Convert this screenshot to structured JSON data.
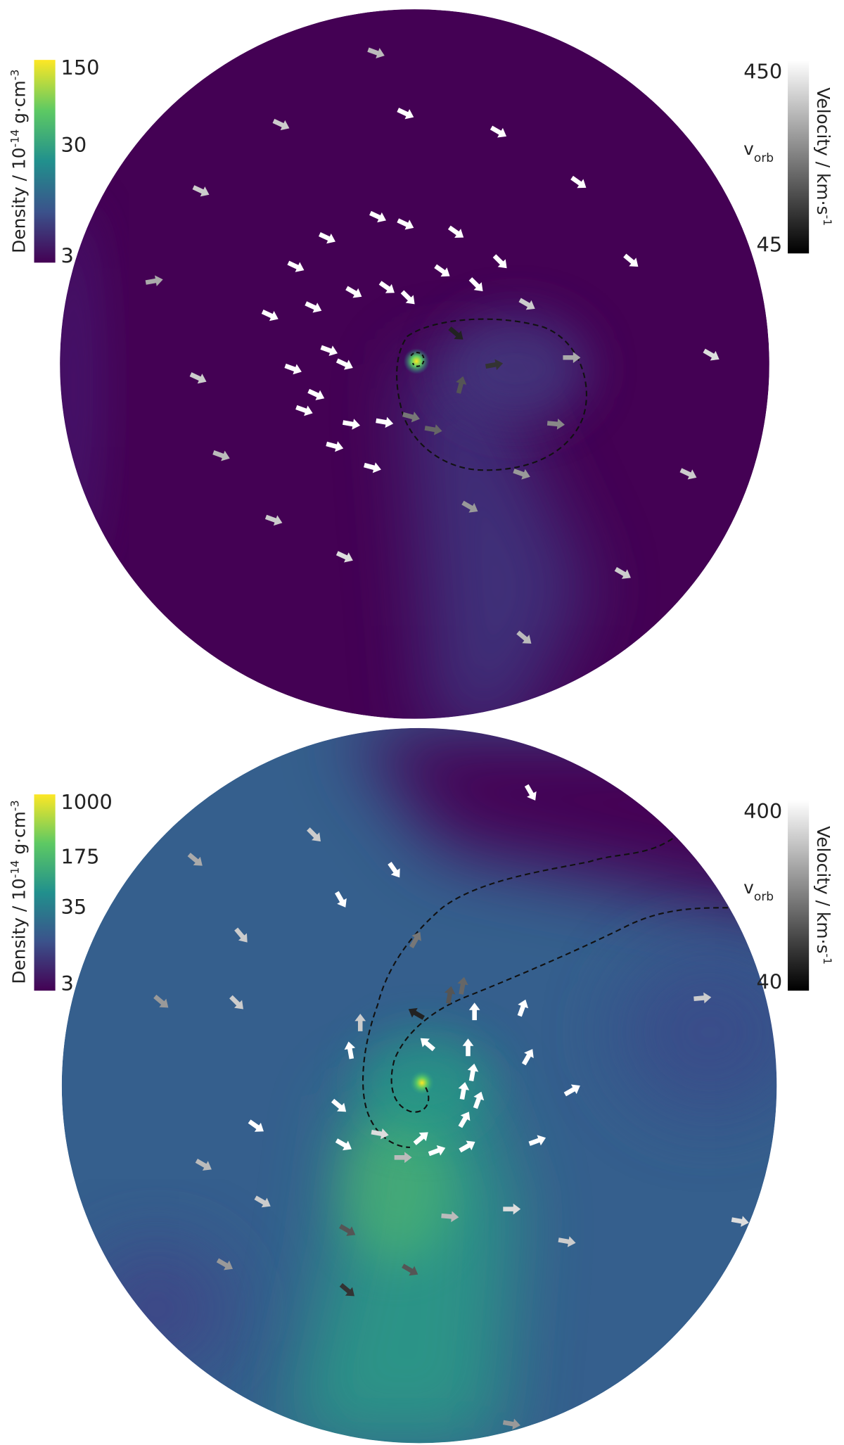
{
  "panels": [
    {
      "density_colorbar": {
        "label": {
          "text": "Density / 10",
          "exponent": "-14",
          "unit": " g·cm",
          "unit_exponent": "-3"
        },
        "scale": "log",
        "lim": [
          3,
          150
        ],
        "ticks": [
          150,
          30,
          3
        ]
      },
      "velocity_colorbar": {
        "label": {
          "text": "Velocity / km·s",
          "exponent": "-1"
        },
        "scale": "log",
        "lim": [
          45,
          450
        ],
        "ticks": [
          450,
          45
        ],
        "marker": {
          "symbol": "v",
          "subscript": "orb"
        }
      }
    },
    {
      "density_colorbar": {
        "label": {
          "text": "Density / 10",
          "exponent": "-14",
          "unit": " g·cm",
          "unit_exponent": "-3"
        },
        "scale": "log",
        "lim": [
          3,
          1000
        ],
        "ticks": [
          1000,
          175,
          35,
          3
        ]
      },
      "velocity_colorbar": {
        "label": {
          "text": "Velocity / km·s",
          "exponent": "-1"
        },
        "scale": "log",
        "lim": [
          40,
          400
        ],
        "ticks": [
          400,
          40
        ],
        "marker": {
          "symbol": "v",
          "subscript": "orb"
        }
      }
    }
  ]
}
